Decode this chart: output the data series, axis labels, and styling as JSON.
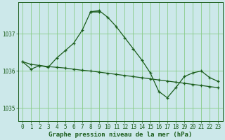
{
  "title": "Graphe pression niveau de la mer (hPa)",
  "background_color": "#cce8ea",
  "grid_color": "#88cc88",
  "line_color": "#1a5c1a",
  "x_labels": [
    "0",
    "1",
    "2",
    "3",
    "4",
    "5",
    "6",
    "7",
    "8",
    "9",
    "10",
    "11",
    "12",
    "13",
    "14",
    "15",
    "16",
    "17",
    "18",
    "19",
    "20",
    "21",
    "22",
    "23"
  ],
  "yticks": [
    1035,
    1036,
    1037
  ],
  "ylim": [
    1034.65,
    1037.85
  ],
  "xlim": [
    -0.5,
    23.5
  ],
  "series1_y": [
    1036.25,
    1036.05,
    1036.15,
    1036.1,
    1036.35,
    1036.55,
    1036.75,
    1037.1,
    1037.6,
    1037.63,
    1037.45,
    1037.2,
    1036.9,
    1036.6,
    1036.3,
    1035.95,
    1035.45,
    1035.28,
    1035.55,
    1035.85,
    1035.95,
    1036.0,
    1035.82,
    1035.72
  ],
  "series2_y": [
    1036.25,
    1036.18,
    1036.15,
    1036.12,
    1036.1,
    1036.08,
    1036.05,
    1036.02,
    1036.0,
    1035.97,
    1035.94,
    1035.91,
    1035.88,
    1035.85,
    1035.82,
    1035.79,
    1035.76,
    1035.73,
    1035.7,
    1035.67,
    1035.64,
    1035.61,
    1035.58,
    1035.55
  ],
  "series3_x": [
    8,
    9
  ],
  "series3_y": [
    1037.6,
    1037.6
  ],
  "ylabel_fontsize": 5.5,
  "xlabel_fontsize": 5.5,
  "title_fontsize": 6.5
}
